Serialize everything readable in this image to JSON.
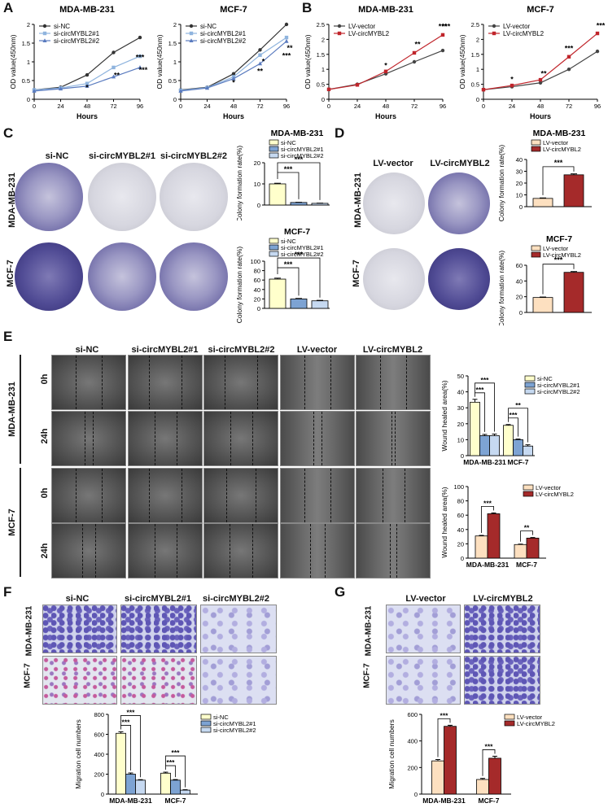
{
  "panel_labels": {
    "A": "A",
    "B": "B",
    "C": "C",
    "D": "D",
    "E": "E",
    "F": "F",
    "G": "G"
  },
  "colors": {
    "siNC": "#ffffcc",
    "si1": "#7da3d3",
    "si2": "#c6d9f1",
    "lvVector": "#fde0c0",
    "lvCirc": "#a52a2a",
    "lineNC": "#333333",
    "line1": "#8fb4de",
    "line2": "#5a7bbf",
    "lineLV": "#444444",
    "lineLVc": "#c0252b"
  },
  "line_charts": [
    {
      "title": "MDA-MB-231",
      "ylabel": "OD value(450nm)",
      "xlabel": "Hours",
      "legend": [
        "si-NC",
        "si-circMYBL2#1",
        "si-circMYBL2#2"
      ],
      "stars": [
        "*",
        "**",
        "***",
        "***"
      ]
    },
    {
      "title": "MCF-7",
      "ylabel": "OD value(450nm)",
      "xlabel": "Hours",
      "legend": [
        "si-NC",
        "si-circMYBL2#1",
        "si-circMYBL2#2"
      ],
      "stars": [
        "*",
        "*",
        "**",
        "**",
        "***"
      ]
    },
    {
      "title": "MDA-MB-231",
      "ylabel": "OD value(450nm)",
      "xlabel": "Hours",
      "legend": [
        "LV-vector",
        "LV-circMYBL2"
      ],
      "stars": [
        "*",
        "**",
        "***",
        "***"
      ]
    },
    {
      "title": "MCF-7",
      "ylabel": "OD value(450nm)",
      "xlabel": "Hours",
      "legend": [
        "LV-vector",
        "LV-circMYBL2"
      ],
      "stars": [
        "*",
        "**",
        "***",
        "***"
      ]
    }
  ],
  "panelC": {
    "cols": [
      "si-NC",
      "si-circMYBL2#1",
      "si-circMYBL2#2"
    ],
    "rows": [
      "MDA-MB-231",
      "MCF-7"
    ]
  },
  "panelD": {
    "cols": [
      "LV-vector",
      "LV-circMYBL2"
    ],
    "rows": [
      "MDA-MB-231",
      "MCF-7"
    ]
  },
  "bar_small": [
    {
      "title": "MDA-MB-231",
      "ylabel": "Colony formation rate(%)",
      "legend": [
        "si-NC",
        "si-circMYBL2#1",
        "si-circMYBL2#2"
      ],
      "stars": "***"
    },
    {
      "title": "MCF-7",
      "ylabel": "Colony formation rate(%)",
      "legend": [
        "si-NC",
        "si-circMYBL2#1",
        "si-circMYBL2#2"
      ],
      "stars": "***"
    },
    {
      "title": "MDA-MB-231",
      "ylabel": "Colony formation rate(%)",
      "legend": [
        "LV-vector",
        "LV-circMYBL2"
      ],
      "stars": "***"
    },
    {
      "title": "MCF-7",
      "ylabel": "Colony formation rate(%)",
      "legend": [
        "LV-vector",
        "LV-circMYBL2"
      ],
      "stars": "***"
    }
  ],
  "panelE": {
    "cols": [
      "si-NC",
      "si-circMYBL2#1",
      "si-circMYBL2#2",
      "LV-vector",
      "LV-circMYBL2"
    ],
    "groups": [
      "MDA-MB-231",
      "MCF-7"
    ],
    "times": [
      "0h",
      "24h"
    ]
  },
  "bar_groups": [
    {
      "ylabel": "Wound healed area(%)",
      "legend": [
        "si-NC",
        "si-circMYBL2#1",
        "si-circMYBL2#2"
      ],
      "stars": [
        "***",
        "***",
        "***",
        "**"
      ]
    },
    {
      "ylabel": "Wound healed area(%)",
      "legend": [
        "LV-vector",
        "LV-circMYBL2"
      ],
      "stars": [
        "***",
        "**"
      ]
    },
    {
      "ylabel": "Migration cell numbers",
      "legend": [
        "si-NC",
        "si-circMYBL2#1",
        "si-circMYBL2#2"
      ],
      "stars": [
        "***",
        "***",
        "***",
        "***"
      ]
    },
    {
      "ylabel": "Migration cell numbers",
      "legend": [
        "LV-vector",
        "LV-circMYBL2"
      ],
      "stars": [
        "***",
        "***"
      ]
    }
  ],
  "panelF": {
    "cols": [
      "si-NC",
      "si-circMYBL2#1",
      "si-circMYBL2#2"
    ],
    "rows": [
      "MDA-MB-231",
      "MCF-7"
    ]
  },
  "panelG": {
    "cols": [
      "LV-vector",
      "LV-circMYBL2"
    ],
    "rows": [
      "MDA-MB-231",
      "MCF-7"
    ]
  },
  "chart_data": [
    {
      "type": "line",
      "title": "MDA-MB-231",
      "xlabel": "Hours",
      "ylabel": "OD value(450nm)",
      "x": [
        0,
        24,
        48,
        72,
        96
      ],
      "xlim": [
        0,
        96
      ],
      "ylim": [
        0,
        2
      ],
      "yticks": [
        0,
        0.5,
        1,
        1.5,
        2
      ],
      "series": [
        {
          "name": "si-NC",
          "values": [
            0.25,
            0.32,
            0.65,
            1.25,
            1.65
          ]
        },
        {
          "name": "si-circMYBL2#1",
          "values": [
            0.25,
            0.3,
            0.42,
            0.85,
            1.15
          ]
        },
        {
          "name": "si-circMYBL2#2",
          "values": [
            0.22,
            0.28,
            0.35,
            0.6,
            0.85
          ]
        }
      ]
    },
    {
      "type": "line",
      "title": "MCF-7",
      "xlabel": "Hours",
      "ylabel": "OD value(450nm)",
      "x": [
        0,
        24,
        48,
        72,
        96
      ],
      "xlim": [
        0,
        96
      ],
      "ylim": [
        0,
        2
      ],
      "yticks": [
        0,
        0.5,
        1,
        1.5,
        2
      ],
      "series": [
        {
          "name": "si-NC",
          "values": [
            0.25,
            0.32,
            0.68,
            1.32,
            2.0
          ]
        },
        {
          "name": "si-circMYBL2#1",
          "values": [
            0.24,
            0.31,
            0.6,
            1.18,
            1.65
          ]
        },
        {
          "name": "si-circMYBL2#2",
          "values": [
            0.22,
            0.3,
            0.55,
            0.95,
            1.55
          ]
        }
      ]
    },
    {
      "type": "line",
      "title": "MDA-MB-231",
      "xlabel": "Hours",
      "ylabel": "OD value(450nm)",
      "x": [
        0,
        24,
        48,
        72,
        96
      ],
      "xlim": [
        0,
        96
      ],
      "ylim": [
        0,
        2.5
      ],
      "yticks": [
        0,
        0.5,
        1,
        1.5,
        2,
        2.5
      ],
      "series": [
        {
          "name": "LV-vector",
          "values": [
            0.33,
            0.5,
            0.85,
            1.25,
            1.63
          ]
        },
        {
          "name": "LV-circMYBL2",
          "values": [
            0.33,
            0.48,
            0.93,
            1.55,
            2.15
          ]
        }
      ]
    },
    {
      "type": "line",
      "title": "MCF-7",
      "xlabel": "Hours",
      "ylabel": "OD value(450nm)",
      "x": [
        0,
        24,
        48,
        72,
        96
      ],
      "xlim": [
        0,
        96
      ],
      "ylim": [
        0,
        2.5
      ],
      "yticks": [
        0,
        0.5,
        1,
        1.5,
        2,
        2.5
      ],
      "series": [
        {
          "name": "LV-vector",
          "values": [
            0.32,
            0.42,
            0.55,
            1.0,
            1.6
          ]
        },
        {
          "name": "LV-circMYBL2",
          "values": [
            0.32,
            0.46,
            0.65,
            1.42,
            2.2
          ]
        }
      ]
    },
    {
      "type": "bar",
      "title": "MDA-MB-231",
      "ylabel": "Colony formation rate(%)",
      "categories": [
        "si-NC",
        "si-circMYBL2#1",
        "si-circMYBL2#2"
      ],
      "values": [
        10,
        1.2,
        0.8
      ],
      "errors": [
        0.3,
        0.1,
        0.1
      ],
      "ylim": [
        0,
        20
      ],
      "yticks": [
        0,
        10,
        20
      ]
    },
    {
      "type": "bar",
      "title": "MCF-7",
      "ylabel": "Colony formation rate(%)",
      "categories": [
        "si-NC",
        "si-circMYBL2#1",
        "si-circMYBL2#2"
      ],
      "values": [
        62,
        20,
        16
      ],
      "errors": [
        2,
        1,
        1
      ],
      "ylim": [
        0,
        100
      ],
      "yticks": [
        0,
        20,
        40,
        60,
        80,
        100
      ]
    },
    {
      "type": "bar",
      "title": "MDA-MB-231",
      "ylabel": "Colony formation rate(%)",
      "categories": [
        "LV-vector",
        "LV-circMYBL2"
      ],
      "values": [
        7,
        27
      ],
      "errors": [
        0.4,
        0.8
      ],
      "ylim": [
        0,
        40
      ],
      "yticks": [
        0,
        10,
        20,
        30,
        40
      ]
    },
    {
      "type": "bar",
      "title": "MCF-7",
      "ylabel": "Colony formation rate(%)",
      "categories": [
        "LV-vector",
        "LV-circMYBL2"
      ],
      "values": [
        19,
        51
      ],
      "errors": [
        0.6,
        1
      ],
      "ylim": [
        0,
        60
      ],
      "yticks": [
        0,
        20,
        40,
        60
      ]
    },
    {
      "type": "bar",
      "ylabel": "Wound healed area(%)",
      "categories": [
        "MDA-MB-231",
        "MCF-7"
      ],
      "ylim": [
        0,
        50
      ],
      "yticks": [
        0,
        10,
        20,
        30,
        40,
        50
      ],
      "series": [
        {
          "name": "si-NC",
          "values": [
            33.5,
            19
          ],
          "errors": [
            1.8,
            0.5
          ]
        },
        {
          "name": "si-circMYBL2#1",
          "values": [
            12.5,
            10
          ],
          "errors": [
            0.8,
            0.4
          ]
        },
        {
          "name": "si-circMYBL2#2",
          "values": [
            12.5,
            6
          ],
          "errors": [
            1,
            0.8
          ]
        }
      ]
    },
    {
      "type": "bar",
      "ylabel": "Wound healed area(%)",
      "categories": [
        "MDA-MB-231",
        "MCF-7"
      ],
      "ylim": [
        0,
        100
      ],
      "yticks": [
        0,
        20,
        40,
        60,
        80,
        100
      ],
      "series": [
        {
          "name": "LV-vector",
          "values": [
            31,
            19
          ],
          "errors": [
            0.8,
            0.6
          ]
        },
        {
          "name": "LV-circMYBL2",
          "values": [
            62,
            28
          ],
          "errors": [
            1.2,
            0.8
          ]
        }
      ]
    },
    {
      "type": "bar",
      "ylabel": "Migration cell numbers",
      "categories": [
        "MDA-MB-231",
        "MCF-7"
      ],
      "ylim": [
        0,
        800
      ],
      "yticks": [
        0,
        200,
        400,
        600,
        800
      ],
      "series": [
        {
          "name": "si-NC",
          "values": [
            610,
            210
          ],
          "errors": [
            15,
            10
          ]
        },
        {
          "name": "si-circMYBL2#1",
          "values": [
            200,
            140
          ],
          "errors": [
            12,
            6
          ]
        },
        {
          "name": "si-circMYBL2#2",
          "values": [
            140,
            40
          ],
          "errors": [
            5,
            4
          ]
        }
      ]
    },
    {
      "type": "bar",
      "ylabel": "Migration cell numbers",
      "categories": [
        "MDA-MB-231",
        "MCF-7"
      ],
      "ylim": [
        0,
        600
      ],
      "yticks": [
        0,
        200,
        400,
        600
      ],
      "series": [
        {
          "name": "LV-vector",
          "values": [
            250,
            110
          ],
          "errors": [
            10,
            8
          ]
        },
        {
          "name": "LV-circMYBL2",
          "values": [
            510,
            270
          ],
          "errors": [
            8,
            15
          ]
        }
      ]
    }
  ]
}
